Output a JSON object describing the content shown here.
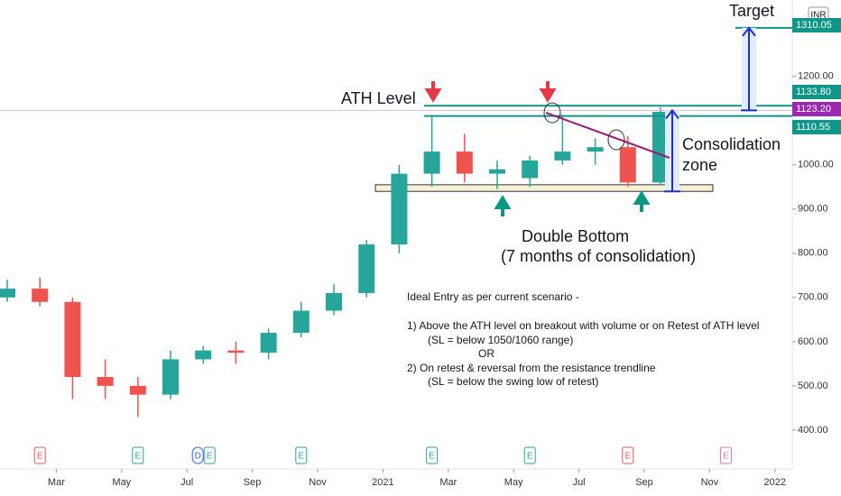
{
  "chart_data": {
    "type": "candlestick",
    "currency": "INR",
    "x": [
      "2020-01",
      "2020-02",
      "2020-03",
      "2020-04",
      "2020-05",
      "2020-06",
      "2020-07",
      "2020-08",
      "2020-09",
      "2020-10",
      "2020-11",
      "2020-12",
      "2021-01",
      "2021-02",
      "2021-03",
      "2021-04",
      "2021-05",
      "2021-06",
      "2021-07",
      "2021-08",
      "2021-09"
    ],
    "open": [
      700,
      720,
      690,
      520,
      500,
      480,
      560,
      580,
      575,
      620,
      670,
      710,
      820,
      980,
      1030,
      980,
      970,
      1010,
      1030,
      1040,
      960
    ],
    "high": [
      740,
      745,
      700,
      560,
      520,
      580,
      590,
      600,
      630,
      690,
      730,
      830,
      1000,
      1110,
      1070,
      1010,
      1020,
      1113,
      1060,
      1065,
      1130
    ],
    "low": [
      690,
      680,
      470,
      470,
      430,
      470,
      550,
      550,
      560,
      610,
      660,
      700,
      800,
      950,
      960,
      945,
      950,
      1000,
      1000,
      950,
      955
    ],
    "close": [
      720,
      690,
      520,
      500,
      480,
      560,
      580,
      575,
      620,
      670,
      710,
      820,
      980,
      1030,
      980,
      990,
      1010,
      1030,
      1040,
      960,
      1120
    ],
    "up_color": "#26a69a",
    "down_color": "#ef5350",
    "ylim": [
      312,
      1373
    ],
    "yticks": [
      {
        "value": 400,
        "label": "400.00"
      },
      {
        "value": 500,
        "label": "500.00"
      },
      {
        "value": 600,
        "label": "600.00"
      },
      {
        "value": 700,
        "label": "700.00"
      },
      {
        "value": 800,
        "label": "800.00"
      },
      {
        "value": 900,
        "label": "900.00"
      },
      {
        "value": 1000,
        "label": "1000.00"
      },
      {
        "value": 1200,
        "label": "1200.00"
      }
    ],
    "xticks": [
      {
        "value": "2020-03",
        "label": "Mar"
      },
      {
        "value": "2020-05",
        "label": "May"
      },
      {
        "value": "2020-07",
        "label": "Jul"
      },
      {
        "value": "2020-09",
        "label": "Sep"
      },
      {
        "value": "2020-11",
        "label": "Nov"
      },
      {
        "value": "2021-01",
        "label": "2021"
      },
      {
        "value": "2021-03",
        "label": "Mar"
      },
      {
        "value": "2021-05",
        "label": "May"
      },
      {
        "value": "2021-07",
        "label": "Jul"
      },
      {
        "value": "2021-09",
        "label": "Sep"
      },
      {
        "value": "2021-11",
        "label": "Nov"
      },
      {
        "value": "2022-01",
        "label": "2022"
      }
    ],
    "levels": [
      {
        "value": 1133.8,
        "label": "1133.80",
        "color": "#0f9688"
      },
      {
        "value": 1123.2,
        "label": "1123.20",
        "color": "#9c27b0"
      },
      {
        "value": 1110.55,
        "label": "1110.55",
        "color": "#0f9688"
      },
      {
        "value": 1310.05,
        "label": "1310.05",
        "color": "#0f9688"
      }
    ],
    "support_zone": [
      940,
      955
    ],
    "events": [
      {
        "label": "E",
        "x": "2020-02",
        "color": "#ef5350"
      },
      {
        "label": "E",
        "x": "2020-05",
        "color": "#26a69a"
      },
      {
        "label": "D",
        "x": "2020-07",
        "color": "#2962ff"
      },
      {
        "label": "E",
        "x": "2020-07",
        "color": "#26a69a"
      },
      {
        "label": "E",
        "x": "2020-10",
        "color": "#26a69a"
      },
      {
        "label": "E",
        "x": "2021-02",
        "color": "#26a69a"
      },
      {
        "label": "E",
        "x": "2021-05",
        "color": "#26a69a"
      },
      {
        "label": "E",
        "x": "2021-08",
        "color": "#ef5350"
      },
      {
        "label": "E",
        "x": "2021-11",
        "color": "#e573a0"
      }
    ],
    "annotations": {
      "target": "Target",
      "ath": "ATH Level",
      "consolidation": [
        "Consolidation",
        "zone"
      ],
      "double_bottom": [
        "Double Bottom",
        "(7 months of consolidation)"
      ],
      "entry": [
        "Ideal Entry as per current scenario -",
        "1) Above the ATH level on breakout with volume or on Retest of ATH level",
        "(SL = below 1050/1060 range)",
        "OR",
        "2) On retest & reversal from the resistance trendline",
        "(SL = below the swing low of retest)"
      ]
    }
  }
}
